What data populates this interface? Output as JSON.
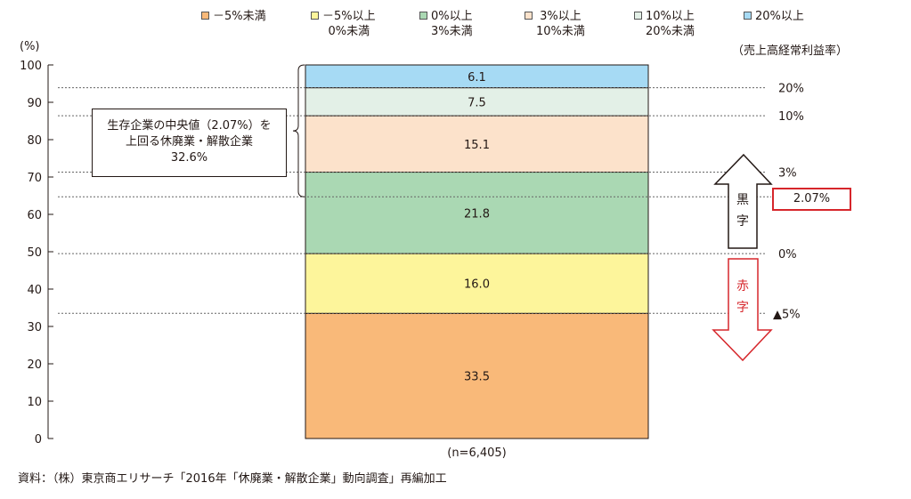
{
  "legend": [
    {
      "line1": "－5%未満",
      "line2": "",
      "color": "#f9b979"
    },
    {
      "line1": "－5%以上",
      "line2": "0%未満",
      "color": "#fdf59b"
    },
    {
      "line1": "0%以上",
      "line2": "3%未満",
      "color": "#aad8b3"
    },
    {
      "line1": "3%以上",
      "line2": "10%未満",
      "color": "#fce2cb"
    },
    {
      "line1": "10%以上",
      "line2": "20%未満",
      "color": "#e3f0e7"
    },
    {
      "line1": "20%以上",
      "line2": "",
      "color": "#a6daf4"
    }
  ],
  "y_unit_label": "(%)",
  "right_axis_title": "（売上高経常利益率）",
  "callout": {
    "line1": "生存企業の中央値（2.07%）を",
    "line2": "上回る休廃業・解散企業",
    "line3": "32.6%"
  },
  "arrows": {
    "up_text": [
      "黒",
      "字"
    ],
    "down_text": [
      "赤",
      "字"
    ],
    "up_color": "#231815",
    "down_color": "#d6262b"
  },
  "highlight_value": "2.07%",
  "highlight_color": "#d6262b",
  "source": "資料：（株）東京商エリサーチ「2016年「休廃業・解散企業」動向調査」再編加工",
  "chart_data": {
    "type": "bar",
    "stacked": true,
    "categories": [
      "(n=6,405)"
    ],
    "series": [
      {
        "name": "－5%未満",
        "values": [
          33.5
        ],
        "label": "33.5"
      },
      {
        "name": "－5%以上 0%未満",
        "values": [
          16.0
        ],
        "label": "16.0"
      },
      {
        "name": "0%以上 3%未満",
        "values": [
          21.8
        ],
        "label": "21.8"
      },
      {
        "name": "3%以上 10%未満",
        "values": [
          15.1
        ],
        "label": "15.1"
      },
      {
        "name": "10%以上 20%未満",
        "values": [
          7.5
        ],
        "label": "7.5"
      },
      {
        "name": "20%以上",
        "values": [
          6.1
        ],
        "label": "6.1"
      }
    ],
    "ylim": [
      0,
      100
    ],
    "yticks": [
      0,
      10,
      20,
      30,
      40,
      50,
      60,
      70,
      80,
      90,
      100
    ],
    "ylabel": "(%)",
    "reference_lines": [
      {
        "label": "20%",
        "value": 93.9
      },
      {
        "label": "10%",
        "value": 86.4
      },
      {
        "label": "3%",
        "value": 71.3
      },
      {
        "label": "0%",
        "value": 49.5
      },
      {
        "label": "▲5%",
        "value": 33.5
      }
    ],
    "median_line": {
      "label": "2.07%",
      "value": 64.7
    },
    "grid": false,
    "legend_position": "top"
  }
}
